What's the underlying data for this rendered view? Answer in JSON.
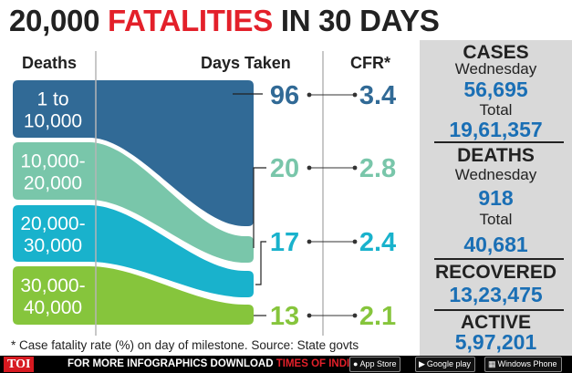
{
  "title": {
    "number": "20,000",
    "fatalities": "FATALITIES",
    "rest": "IN 30 DAYS"
  },
  "headers": {
    "deaths": "Deaths",
    "days_taken": "Days Taken",
    "cfr": "CFR*"
  },
  "colors": {
    "band1": "#316a96",
    "band2": "#79c6aa",
    "band3": "#19b2cc",
    "band4": "#86c53c",
    "panel": "#d9d9d9",
    "number_blue": "#1a6fb5",
    "title_red": "#e3202a"
  },
  "chart_data": {
    "type": "table",
    "title": "20,000 FATALITIES IN 30 DAYS",
    "columns": [
      "Deaths",
      "Days Taken",
      "CFR*"
    ],
    "rows": [
      {
        "deaths_line1": "1 to",
        "deaths_line2": "10,000",
        "days_taken": "96",
        "cfr": "3.4"
      },
      {
        "deaths_line1": "10,000-",
        "deaths_line2": "20,000",
        "days_taken": "20",
        "cfr": "2.8"
      },
      {
        "deaths_line1": "20,000-",
        "deaths_line2": "30,000",
        "days_taken": "17",
        "cfr": "2.4"
      },
      {
        "deaths_line1": "30,000-",
        "deaths_line2": "40,000",
        "days_taken": "13",
        "cfr": "2.1"
      }
    ]
  },
  "side": {
    "cases_heading": "CASES",
    "cases_wed_label": "Wednesday",
    "cases_wed": "56,695",
    "cases_total_label": "Total",
    "cases_total": "19,61,357",
    "deaths_heading": "DEATHS",
    "deaths_wed_label": "Wednesday",
    "deaths_wed": "918",
    "deaths_total_label": "Total",
    "deaths_total": "40,681",
    "recovered_heading": "RECOVERED",
    "recovered": "13,23,475",
    "active_heading": "ACTIVE",
    "active": "5,97,201"
  },
  "footnote": "* Case fatality rate (%) on day of milestone. Source: State govts",
  "footer": {
    "logo": "TOI",
    "text_white": "FOR MORE  INFOGRAPHICS DOWNLOAD",
    "text_red": "TIMES OF INDIA  APP",
    "badge_appstore": "App Store",
    "badge_googleplay": "Google play",
    "badge_windows": "Windows Phone"
  }
}
